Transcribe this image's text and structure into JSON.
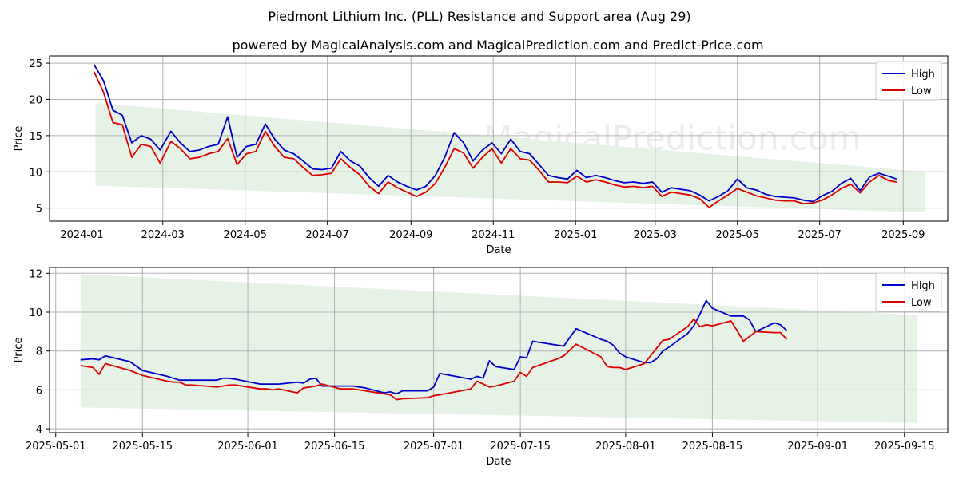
{
  "title": "Piedmont Lithium Inc. (PLL) Resistance and Support area (Aug 29)",
  "subtitle": "powered by MagicalAnalysis.com and MagicalPrediction.com and Predict-Price.com",
  "watermarks": [
    "MagicalAnalysis.com",
    "MagicalPrediction.com"
  ],
  "colors": {
    "high": "#0000cc",
    "low": "#dd0000",
    "band": "#e6f2e6",
    "grid": "#b0b0b0"
  },
  "chart_data": [
    {
      "type": "line",
      "xlabel": "Date",
      "ylabel": "Price",
      "x_ticks": [
        "2024-01",
        "2024-03",
        "2024-05",
        "2024-07",
        "2024-09",
        "2024-11",
        "2025-01",
        "2025-03",
        "2025-05",
        "2025-07",
        "2025-09"
      ],
      "y_ticks": [
        5,
        10,
        15,
        20,
        25
      ],
      "xlim": [
        "2023-12-08",
        "2025-10-04"
      ],
      "ylim": [
        3.2,
        26.0
      ],
      "grid": true,
      "legend_position": "top-right",
      "legend": [
        "High",
        "Low"
      ],
      "band": {
        "start": "2024-01-11",
        "end": "2025-09-17",
        "upper": [
          19.5,
          10.0
        ],
        "lower": [
          8.1,
          4.4
        ]
      },
      "x": [
        "2024-01-10",
        "2024-01-17",
        "2024-01-24",
        "2024-01-31",
        "2024-02-07",
        "2024-02-14",
        "2024-02-21",
        "2024-02-28",
        "2024-03-07",
        "2024-03-14",
        "2024-03-21",
        "2024-03-28",
        "2024-04-04",
        "2024-04-11",
        "2024-04-18",
        "2024-04-25",
        "2024-05-02",
        "2024-05-09",
        "2024-05-16",
        "2024-05-23",
        "2024-05-30",
        "2024-06-06",
        "2024-06-13",
        "2024-06-20",
        "2024-06-27",
        "2024-07-04",
        "2024-07-11",
        "2024-07-18",
        "2024-07-25",
        "2024-08-01",
        "2024-08-08",
        "2024-08-15",
        "2024-08-22",
        "2024-08-29",
        "2024-09-05",
        "2024-09-12",
        "2024-09-19",
        "2024-09-26",
        "2024-10-03",
        "2024-10-10",
        "2024-10-17",
        "2024-10-24",
        "2024-10-31",
        "2024-11-07",
        "2024-11-14",
        "2024-11-21",
        "2024-11-28",
        "2024-12-05",
        "2024-12-12",
        "2024-12-19",
        "2024-12-26",
        "2025-01-02",
        "2025-01-09",
        "2025-01-16",
        "2025-01-23",
        "2025-01-30",
        "2025-02-06",
        "2025-02-13",
        "2025-02-20",
        "2025-02-27",
        "2025-03-06",
        "2025-03-13",
        "2025-03-20",
        "2025-03-27",
        "2025-04-03",
        "2025-04-10",
        "2025-04-17",
        "2025-04-24",
        "2025-05-01",
        "2025-05-08",
        "2025-05-15",
        "2025-05-22",
        "2025-05-29",
        "2025-06-05",
        "2025-06-12",
        "2025-06-19",
        "2025-06-26",
        "2025-07-03",
        "2025-07-10",
        "2025-07-17",
        "2025-07-24",
        "2025-07-31",
        "2025-08-07",
        "2025-08-14",
        "2025-08-21",
        "2025-08-27"
      ],
      "series": [
        {
          "name": "High",
          "values": [
            24.8,
            22.6,
            18.5,
            17.8,
            14.0,
            15.0,
            14.5,
            13.0,
            15.6,
            14.0,
            12.8,
            13.0,
            13.5,
            13.8,
            17.6,
            12.0,
            13.5,
            13.8,
            16.6,
            14.5,
            13.0,
            12.5,
            11.5,
            10.4,
            10.3,
            10.5,
            12.8,
            11.5,
            10.8,
            9.2,
            8.0,
            9.5,
            8.6,
            8.0,
            7.5,
            8.0,
            9.5,
            12.0,
            15.4,
            14.0,
            11.5,
            13.0,
            14.0,
            12.5,
            14.5,
            12.8,
            12.5,
            11.0,
            9.5,
            9.2,
            9.0,
            10.2,
            9.2,
            9.5,
            9.2,
            8.8,
            8.5,
            8.6,
            8.4,
            8.6,
            7.2,
            7.8,
            7.6,
            7.4,
            6.8,
            6.0,
            6.6,
            7.4,
            9.0,
            7.8,
            7.5,
            6.9,
            6.6,
            6.5,
            6.4,
            6.1,
            5.9,
            6.7,
            7.3,
            8.4,
            9.1,
            7.4,
            9.3,
            9.8,
            9.4,
            9.0
          ]
        },
        {
          "name": "Low",
          "values": [
            23.8,
            21.0,
            16.8,
            16.5,
            12.0,
            13.8,
            13.5,
            11.2,
            14.2,
            13.2,
            11.8,
            12.0,
            12.5,
            12.8,
            14.6,
            11.0,
            12.5,
            12.8,
            15.6,
            13.5,
            12.0,
            11.8,
            10.6,
            9.5,
            9.6,
            9.8,
            11.8,
            10.6,
            9.6,
            8.0,
            7.0,
            8.6,
            7.8,
            7.2,
            6.6,
            7.2,
            8.4,
            10.6,
            13.2,
            12.6,
            10.5,
            12.0,
            13.2,
            11.2,
            13.2,
            11.8,
            11.6,
            10.2,
            8.6,
            8.6,
            8.5,
            9.4,
            8.6,
            8.9,
            8.6,
            8.2,
            7.9,
            8.0,
            7.8,
            8.0,
            6.6,
            7.2,
            7.0,
            6.8,
            6.3,
            5.1,
            6.0,
            6.8,
            7.7,
            7.2,
            6.7,
            6.4,
            6.1,
            6.0,
            6.0,
            5.6,
            5.7,
            6.1,
            6.8,
            7.7,
            8.3,
            7.1,
            8.6,
            9.5,
            8.8,
            8.6
          ]
        }
      ]
    },
    {
      "type": "line",
      "xlabel": "Date",
      "ylabel": "Price",
      "x_ticks": [
        "2025-05-01",
        "2025-05-15",
        "2025-06-01",
        "2025-06-15",
        "2025-07-01",
        "2025-07-15",
        "2025-08-01",
        "2025-08-15",
        "2025-09-01",
        "2025-09-15"
      ],
      "y_ticks": [
        4,
        6,
        8,
        10,
        12
      ],
      "xlim": [
        "2025-04-30",
        "2025-09-22"
      ],
      "ylim": [
        3.8,
        12.3
      ],
      "grid": true,
      "legend_position": "top-right",
      "legend": [
        "High",
        "Low"
      ],
      "band": {
        "start": "2025-05-05",
        "end": "2025-09-17",
        "upper": [
          11.95,
          9.85
        ],
        "lower": [
          5.1,
          4.3
        ]
      },
      "x": [
        "2025-05-05",
        "2025-05-07",
        "2025-05-08",
        "2025-05-09",
        "2025-05-13",
        "2025-05-15",
        "2025-05-19",
        "2025-05-20",
        "2025-05-21",
        "2025-05-22",
        "2025-05-23",
        "2025-05-27",
        "2025-05-28",
        "2025-05-29",
        "2025-05-30",
        "2025-06-03",
        "2025-06-04",
        "2025-06-05",
        "2025-06-06",
        "2025-06-09",
        "2025-06-10",
        "2025-06-11",
        "2025-06-12",
        "2025-06-13",
        "2025-06-16",
        "2025-06-17",
        "2025-06-18",
        "2025-06-20",
        "2025-06-23",
        "2025-06-24",
        "2025-06-25",
        "2025-06-26",
        "2025-06-30",
        "2025-07-01",
        "2025-07-02",
        "2025-07-07",
        "2025-07-08",
        "2025-07-09",
        "2025-07-10",
        "2025-07-11",
        "2025-07-14",
        "2025-07-15",
        "2025-07-16",
        "2025-07-17",
        "2025-07-21",
        "2025-07-22",
        "2025-07-23",
        "2025-07-24",
        "2025-07-28",
        "2025-07-29",
        "2025-07-30",
        "2025-07-31",
        "2025-08-01",
        "2025-08-04",
        "2025-08-05",
        "2025-08-06",
        "2025-08-07",
        "2025-08-08",
        "2025-08-11",
        "2025-08-12",
        "2025-08-13",
        "2025-08-14",
        "2025-08-15",
        "2025-08-18",
        "2025-08-19",
        "2025-08-20",
        "2025-08-21",
        "2025-08-22",
        "2025-08-25",
        "2025-08-26",
        "2025-08-27"
      ],
      "series": [
        {
          "name": "High",
          "values": [
            7.55,
            7.6,
            7.55,
            7.75,
            7.45,
            7.0,
            6.7,
            6.6,
            6.5,
            6.5,
            6.5,
            6.5,
            6.6,
            6.6,
            6.55,
            6.3,
            6.3,
            6.3,
            6.3,
            6.4,
            6.35,
            6.55,
            6.6,
            6.2,
            6.2,
            6.2,
            6.2,
            6.1,
            5.85,
            5.9,
            5.8,
            5.95,
            5.95,
            6.15,
            6.85,
            6.55,
            6.7,
            6.6,
            7.5,
            7.2,
            7.05,
            7.7,
            7.65,
            8.5,
            8.3,
            8.25,
            8.7,
            9.15,
            8.6,
            8.5,
            8.3,
            7.9,
            7.7,
            7.4,
            7.4,
            7.6,
            8.0,
            8.2,
            8.9,
            9.3,
            9.9,
            10.6,
            10.2,
            9.8,
            9.8,
            9.8,
            9.6,
            9.0,
            9.45,
            9.35,
            9.05
          ]
        },
        {
          "name": "Low",
          "values": [
            7.25,
            7.15,
            6.8,
            7.35,
            7.0,
            6.75,
            6.45,
            6.4,
            6.4,
            6.25,
            6.25,
            6.15,
            6.2,
            6.25,
            6.25,
            6.05,
            6.05,
            6.0,
            6.05,
            5.85,
            6.1,
            6.15,
            6.2,
            6.3,
            6.05,
            6.05,
            6.05,
            5.95,
            5.8,
            5.75,
            5.5,
            5.55,
            5.6,
            5.7,
            5.75,
            6.05,
            6.45,
            6.3,
            6.15,
            6.2,
            6.45,
            6.9,
            6.7,
            7.15,
            7.6,
            7.75,
            8.05,
            8.35,
            7.7,
            7.2,
            7.15,
            7.15,
            7.05,
            7.35,
            7.75,
            8.15,
            8.55,
            8.6,
            9.25,
            9.65,
            9.25,
            9.35,
            9.3,
            9.55,
            9.05,
            8.5,
            8.75,
            9.0,
            8.95,
            8.95,
            8.6
          ]
        }
      ]
    }
  ]
}
